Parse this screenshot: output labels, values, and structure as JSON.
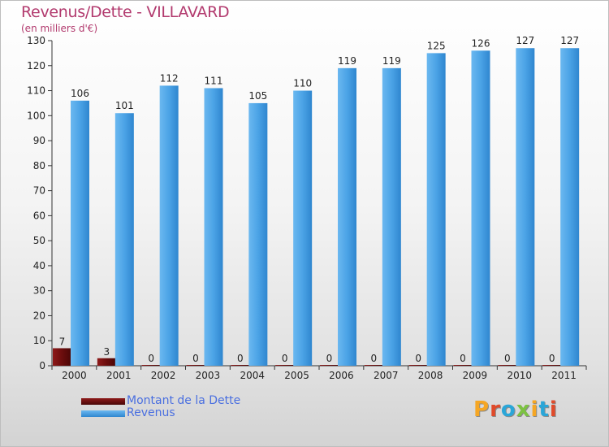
{
  "title": "Revenus/Dette - VILLAVARD",
  "subtitle": "(en milliers d'€)",
  "logo_text": "Proxiti",
  "logo_colors": [
    "#f5a623",
    "#e04a2a",
    "#2aa6d8",
    "#7cc242",
    "#f5a623",
    "#2aa6d8",
    "#e04a2a"
  ],
  "legend": [
    {
      "label": "Montant de la Dette",
      "color": "#6b0d0d"
    },
    {
      "label": "Revenus",
      "color": "#4ba3e6"
    }
  ],
  "chart_data": {
    "type": "bar",
    "categories": [
      "2000",
      "2001",
      "2002",
      "2003",
      "2004",
      "2005",
      "2006",
      "2007",
      "2008",
      "2009",
      "2010",
      "2011"
    ],
    "series": [
      {
        "name": "Montant de la Dette",
        "values": [
          7,
          3,
          0,
          0,
          0,
          0,
          0,
          0,
          0,
          0,
          0,
          0
        ],
        "color": "#6b0d0d"
      },
      {
        "name": "Revenus",
        "values": [
          106,
          101,
          112,
          111,
          105,
          110,
          119,
          119,
          125,
          126,
          127,
          127
        ],
        "color": "#4ba3e6"
      }
    ],
    "ylim": [
      0,
      130
    ],
    "yticks": [
      0,
      10,
      20,
      30,
      40,
      50,
      60,
      70,
      80,
      90,
      100,
      110,
      120,
      130
    ],
    "grid": false,
    "legend_position": "bottom-left"
  }
}
